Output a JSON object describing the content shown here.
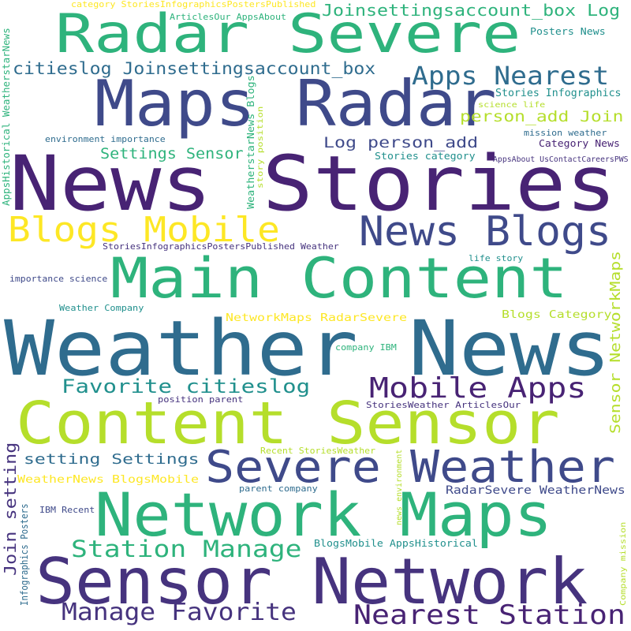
{
  "palette": {
    "background": "#ffffff",
    "dark_purple": "#46337e",
    "purple": "#482374",
    "indigo": "#3f4a8a",
    "blue": "#2f6c8e",
    "teal": "#21908d",
    "green": "#2eb37c",
    "lime": "#b5de2b",
    "yellow": "#fde725"
  },
  "words": [
    {
      "text": "News Stories",
      "color": "#482374"
    },
    {
      "text": "Weather News",
      "color": "#2f6c8e"
    },
    {
      "text": "Sensor Network",
      "color": "#46337e"
    },
    {
      "text": "Content Sensor",
      "color": "#b5de2b"
    },
    {
      "text": "Network Maps",
      "color": "#2eb37c"
    },
    {
      "text": "Main Content",
      "color": "#2eb37c"
    },
    {
      "text": "Maps Radar",
      "color": "#3f4a8a"
    },
    {
      "text": "Radar Severe",
      "color": "#2eb37c"
    },
    {
      "text": "Severe Weather",
      "color": "#3f4a8a"
    },
    {
      "text": "News Blogs",
      "color": "#3f4a8a"
    },
    {
      "text": "Blogs Mobile",
      "color": "#fde725"
    },
    {
      "text": "Mobile Apps",
      "color": "#482374"
    },
    {
      "text": "Nearest Station",
      "color": "#482374"
    },
    {
      "text": "Manage Favorite",
      "color": "#46337e"
    },
    {
      "text": "Favorite citieslog",
      "color": "#21908d"
    },
    {
      "text": "Station Manage",
      "color": "#2eb37c"
    },
    {
      "text": "Apps Nearest",
      "color": "#2f6c8e"
    },
    {
      "text": "citieslog Joinsettingsaccount_box",
      "color": "#2f6c8e"
    },
    {
      "text": "Joinsettingsaccount_box Log",
      "color": "#2eb37c"
    },
    {
      "text": "person_add Join",
      "color": "#b5de2b"
    },
    {
      "text": "Log person_add",
      "color": "#3f4a8a"
    },
    {
      "text": "Settings Sensor",
      "color": "#2eb37c"
    },
    {
      "text": "setting Settings",
      "color": "#2f6c8e"
    },
    {
      "text": "Join setting",
      "color": "#46337e"
    },
    {
      "text": "Sensor NetworkMaps",
      "color": "#b5de2b"
    },
    {
      "text": "RadarSevere WeatherNews",
      "color": "#3f4a8a"
    },
    {
      "text": "Stories Infographics",
      "color": "#21908d"
    },
    {
      "text": "Category News",
      "color": "#482374"
    },
    {
      "text": "Blogs Category",
      "color": "#b5de2b"
    },
    {
      "text": "NetworkMaps RadarSevere",
      "color": "#fde725"
    },
    {
      "text": "WeatherNews BlogsMobile",
      "color": "#fde725"
    },
    {
      "text": "BlogsMobile AppsHistorical",
      "color": "#21908d"
    },
    {
      "text": "Recent StoriesWeather",
      "color": "#b5de2b"
    },
    {
      "text": "StoriesWeather ArticlesOur",
      "color": "#46337e"
    },
    {
      "text": "StoriesInfographicsPostersPublished Weather",
      "color": "#46337e"
    },
    {
      "text": "category StoriesInfographicsPostersPublished",
      "color": "#fde725"
    },
    {
      "text": "ArticlesOur AppsAbout",
      "color": "#2eb37c"
    },
    {
      "text": "Posters News",
      "color": "#21908d"
    },
    {
      "text": "science life",
      "color": "#b5de2b"
    },
    {
      "text": "mission weather",
      "color": "#2f6c8e"
    },
    {
      "text": "AppsAbout UsContactCareersPWS",
      "color": "#46337e"
    },
    {
      "text": "Stories category",
      "color": "#21908d"
    },
    {
      "text": "environment importance",
      "color": "#2f6c8e"
    },
    {
      "text": "life story",
      "color": "#21908d"
    },
    {
      "text": "importance science",
      "color": "#3f4a8a"
    },
    {
      "text": "Weather Company",
      "color": "#21908d"
    },
    {
      "text": "company IBM",
      "color": "#2eb37c"
    },
    {
      "text": "position parent",
      "color": "#46337e"
    },
    {
      "text": "parent company",
      "color": "#2f6c8e"
    },
    {
      "text": "IBM Recent",
      "color": "#3f4a8a"
    },
    {
      "text": "AppsHistorical WeatherstarNews",
      "color": "#2eb37c"
    },
    {
      "text": "WeatherstarNews Blogs",
      "color": "#2eb37c"
    },
    {
      "text": "story position",
      "color": "#b5de2b"
    },
    {
      "text": "Infographics Posters",
      "color": "#2f6c8e"
    },
    {
      "text": "news environment",
      "color": "#b5de2b"
    },
    {
      "text": "Company mission",
      "color": "#b5de2b"
    }
  ]
}
